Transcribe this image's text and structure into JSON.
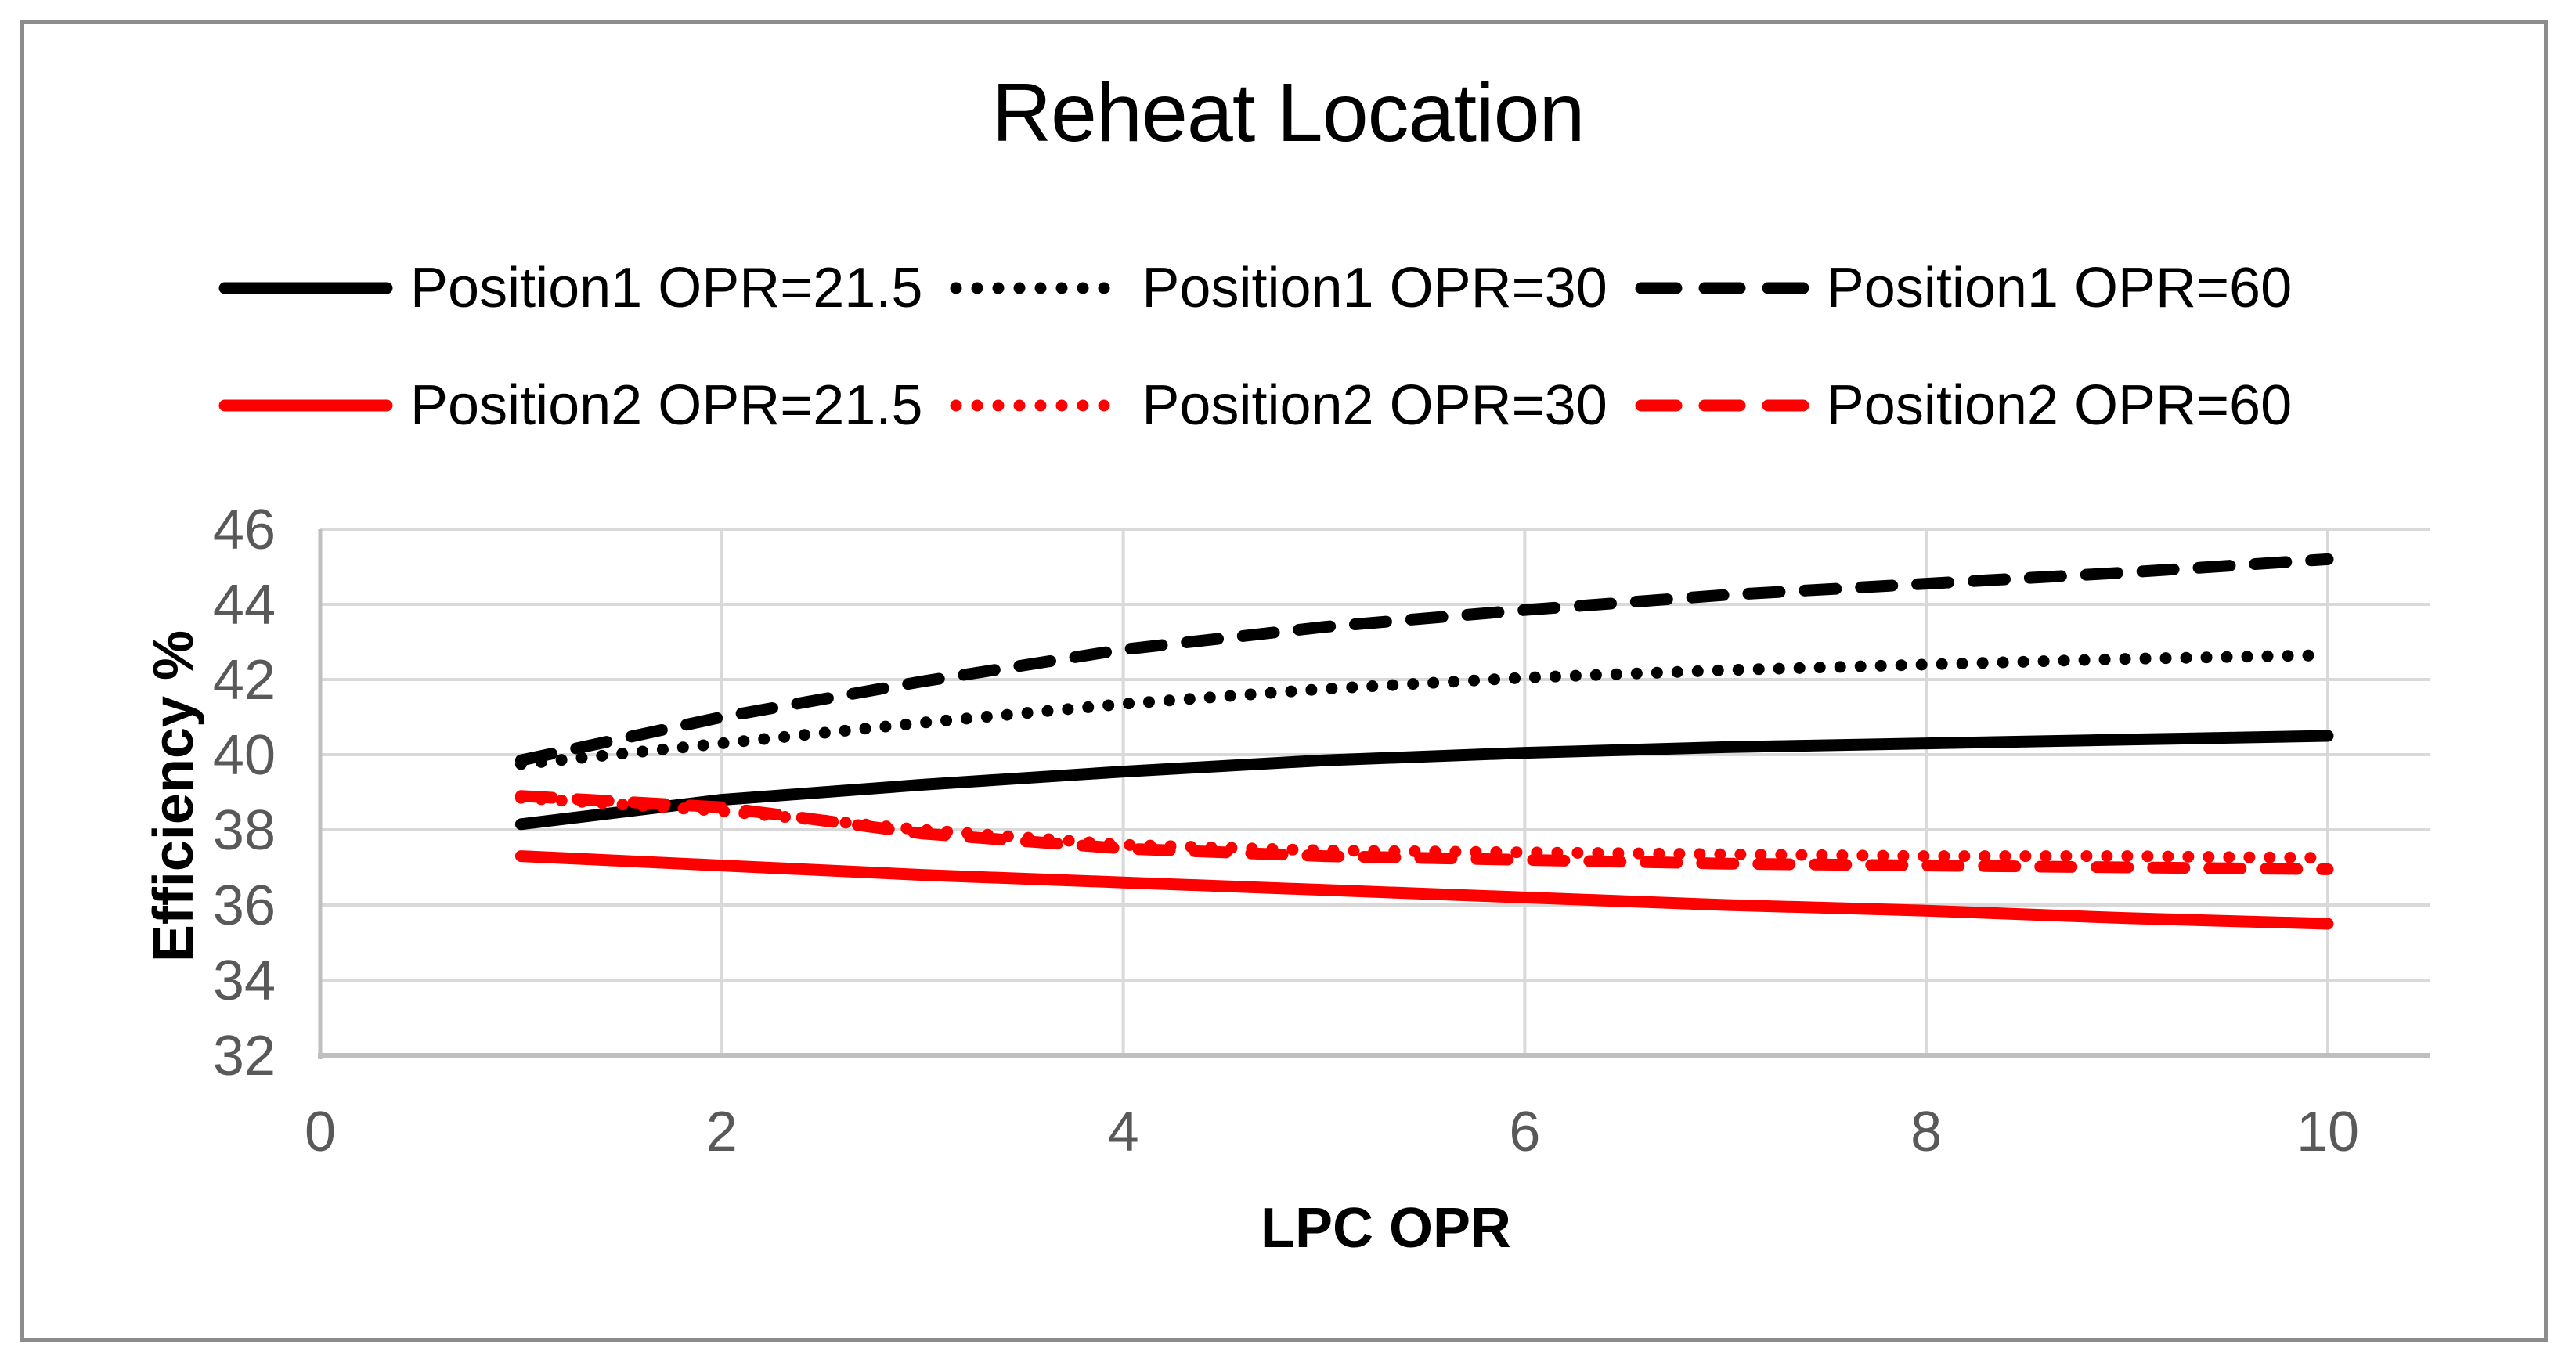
{
  "figure": {
    "title": "Reheat Location",
    "x_axis_title": "LPC OPR",
    "y_axis_title": "Efficiency %"
  },
  "colors": {
    "series_black": "#000000",
    "series_red": "#ff0000",
    "gridline": "#d9d9d9",
    "axis_line": "#bfbfbf",
    "tick_label": "#595959",
    "frame_border": "#8c8c8c",
    "text": "#000000"
  },
  "chart_data": {
    "type": "line",
    "title": "Reheat Location",
    "xlabel": "LPC OPR",
    "ylabel": "Efficiency %",
    "xlim": [
      0,
      10.5
    ],
    "ylim": [
      32,
      46
    ],
    "x_ticks": [
      0,
      2,
      4,
      6,
      8,
      10
    ],
    "y_ticks": [
      32,
      34,
      36,
      38,
      40,
      42,
      44,
      46
    ],
    "grid": true,
    "legend_position": "top",
    "legend_rows": [
      [
        0,
        1,
        2
      ],
      [
        3,
        4,
        5
      ]
    ],
    "x": [
      1,
      2,
      3,
      4,
      5,
      6,
      7,
      8,
      9,
      10
    ],
    "series": [
      {
        "name": "Position1 OPR=21.5",
        "color": "#000000",
        "style": "solid",
        "values": [
          38.15,
          38.8,
          39.2,
          39.55,
          39.85,
          40.05,
          40.2,
          40.3,
          40.4,
          40.5
        ]
      },
      {
        "name": "Position1 OPR=30",
        "color": "#000000",
        "style": "dotted",
        "values": [
          39.75,
          40.3,
          40.85,
          41.35,
          41.75,
          42.05,
          42.25,
          42.4,
          42.55,
          42.65
        ]
      },
      {
        "name": "Position1 OPR=60",
        "color": "#000000",
        "style": "dashed",
        "values": [
          39.85,
          41.0,
          41.95,
          42.8,
          43.4,
          43.85,
          44.25,
          44.55,
          44.85,
          45.2
        ]
      },
      {
        "name": "Position2 OPR=21.5",
        "color": "#ff0000",
        "style": "solid",
        "values": [
          37.3,
          37.05,
          36.8,
          36.6,
          36.4,
          36.2,
          36.0,
          35.85,
          35.65,
          35.5
        ]
      },
      {
        "name": "Position2 OPR=30",
        "color": "#ff0000",
        "style": "dotted",
        "values": [
          38.85,
          38.5,
          38.0,
          37.6,
          37.45,
          37.4,
          37.35,
          37.3,
          37.3,
          37.25
        ]
      },
      {
        "name": "Position2 OPR=60",
        "color": "#ff0000",
        "style": "dashed",
        "values": [
          38.9,
          38.6,
          37.9,
          37.5,
          37.3,
          37.2,
          37.1,
          37.05,
          37.0,
          36.95
        ]
      }
    ]
  }
}
